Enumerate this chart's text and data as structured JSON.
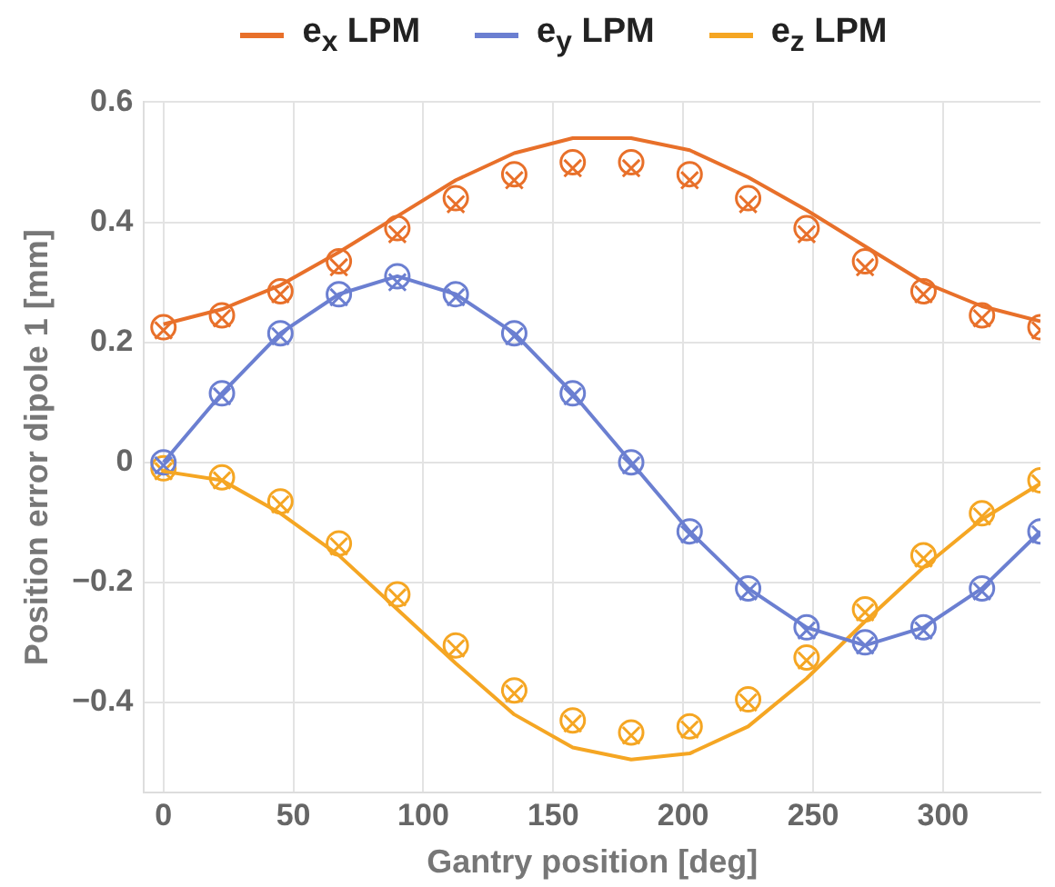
{
  "chart_data": {
    "type": "line",
    "xlabel": "Gantry position [deg]",
    "ylabel": "Position error dipole 1 [mm]",
    "x": [
      0,
      22.5,
      45,
      67.5,
      90,
      112.5,
      135,
      157.5,
      180,
      202.5,
      225,
      247.5,
      270,
      292.5,
      315,
      337.5
    ],
    "xlim": [
      -7.5,
      337.5
    ],
    "xticks": [
      0,
      50,
      100,
      150,
      200,
      250,
      300
    ],
    "ylim": [
      -0.55,
      0.6
    ],
    "yticks": [
      -0.4,
      -0.2,
      0.0,
      0.2,
      0.4,
      0.6
    ],
    "grid": true,
    "legend": "top",
    "marker": "none",
    "line_style": "solid",
    "series": [
      {
        "name": "e$_{x}$ LPM",
        "color": "#e8702a",
        "values": [
          0.23,
          0.255,
          0.295,
          0.35,
          0.41,
          0.47,
          0.515,
          0.54,
          0.54,
          0.52,
          0.475,
          0.42,
          0.36,
          0.3,
          0.26,
          0.235
        ]
      },
      {
        "name": "e$_{y}$ LPM",
        "color": "#6b7fd1",
        "values": [
          0,
          0.115,
          0.215,
          0.28,
          0.31,
          0.28,
          0.215,
          0.115,
          0,
          -0.115,
          -0.21,
          -0.275,
          -0.305,
          -0.275,
          -0.21,
          -0.115
        ]
      },
      {
        "name": "e$_{z}$ LPM",
        "color": "#f5a623",
        "values": [
          -0.015,
          -0.03,
          -0.085,
          -0.155,
          -0.245,
          -0.335,
          -0.42,
          -0.475,
          -0.495,
          -0.485,
          -0.44,
          -0.36,
          -0.265,
          -0.175,
          -0.095,
          -0.035
        ]
      },
      {
        "type": "scatter",
        "marker": "circle",
        "color": "#e8702a",
        "values": [
          0.225,
          0.245,
          0.285,
          0.335,
          0.39,
          0.44,
          0.48,
          0.5,
          0.5,
          0.48,
          0.44,
          0.39,
          0.335,
          0.285,
          0.245,
          0.225
        ]
      },
      {
        "type": "scatter",
        "marker": "cross",
        "color": "#e8702a",
        "values": [
          0.22,
          0.24,
          0.28,
          0.325,
          0.38,
          0.43,
          0.47,
          0.49,
          0.49,
          0.47,
          0.43,
          0.38,
          0.325,
          0.28,
          0.24,
          0.22
        ]
      },
      {
        "type": "scatter",
        "marker": "circle",
        "color": "#6b7fd1",
        "values": [
          0,
          0.115,
          0.215,
          0.28,
          0.31,
          0.28,
          0.215,
          0.115,
          0,
          -0.115,
          -0.21,
          -0.275,
          -0.3,
          -0.275,
          -0.21,
          -0.115
        ]
      },
      {
        "type": "scatter",
        "marker": "cross",
        "color": "#6b7fd1",
        "values": [
          -0.005,
          0.11,
          0.21,
          0.275,
          0.3,
          0.275,
          0.21,
          0.11,
          -0.005,
          -0.12,
          -0.215,
          -0.28,
          -0.305,
          -0.28,
          -0.215,
          -0.12
        ]
      },
      {
        "type": "scatter",
        "marker": "circle",
        "color": "#f5a623",
        "values": [
          -0.01,
          -0.025,
          -0.065,
          -0.135,
          -0.22,
          -0.305,
          -0.38,
          -0.43,
          -0.45,
          -0.44,
          -0.395,
          -0.325,
          -0.245,
          -0.155,
          -0.085,
          -0.03
        ]
      },
      {
        "type": "scatter",
        "marker": "cross",
        "color": "#f5a623",
        "values": [
          -0.015,
          -0.03,
          -0.07,
          -0.14,
          -0.225,
          -0.31,
          -0.385,
          -0.435,
          -0.455,
          -0.445,
          -0.4,
          -0.33,
          -0.25,
          -0.16,
          -0.09,
          -0.035
        ]
      }
    ]
  }
}
